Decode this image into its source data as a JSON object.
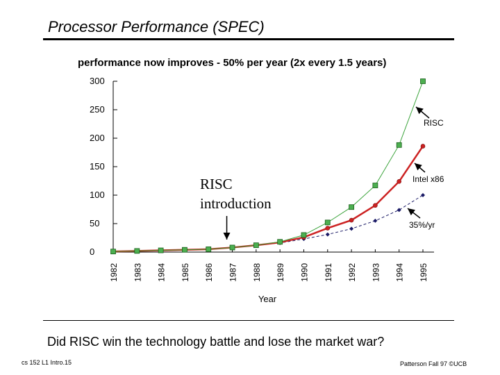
{
  "slide": {
    "title": "Processor Performance (SPEC)",
    "question": "Did RISC win the technology battle and lose the market war?",
    "footer_left": "cs 152  L1 Intro.15",
    "footer_right": "Patterson Fall 97 ©UCB"
  },
  "colors": {
    "risc": "#3aa33a",
    "intel": "#cc2222",
    "trend": "#1a1a66",
    "axis": "#000000"
  },
  "chart_data": {
    "type": "line",
    "title": "performance now improves - 50% per year (2x every 1.5 years)",
    "xlabel": "Year",
    "ylabel": "",
    "ylim": [
      0,
      300
    ],
    "yticks": [
      0,
      50,
      100,
      150,
      200,
      250,
      300
    ],
    "categories": [
      "1982",
      "1983",
      "1984",
      "1985",
      "1986",
      "1987",
      "1988",
      "1989",
      "1990",
      "1991",
      "1992",
      "1993",
      "1994",
      "1995"
    ],
    "series": [
      {
        "name": "RISC",
        "label": "RISC",
        "marker": "square",
        "values": [
          1,
          2,
          3,
          4,
          5,
          8,
          12,
          18,
          30,
          52,
          79,
          117,
          188,
          300
        ]
      },
      {
        "name": "Intel x86",
        "label": "Intel x86",
        "marker": "circle",
        "values": [
          1,
          2,
          3,
          4,
          5,
          8,
          12,
          17,
          26,
          42,
          56,
          82,
          124,
          186
        ]
      },
      {
        "name": "35%/yr",
        "label": "35%/yr",
        "marker": "diamond",
        "dashed": true,
        "values": [
          1,
          2,
          3,
          4,
          5,
          8,
          12,
          16,
          23,
          31,
          41,
          55,
          74,
          100
        ]
      }
    ],
    "annotations": [
      {
        "text_lines": [
          "RISC",
          "introduction"
        ],
        "year": "1987"
      }
    ]
  }
}
